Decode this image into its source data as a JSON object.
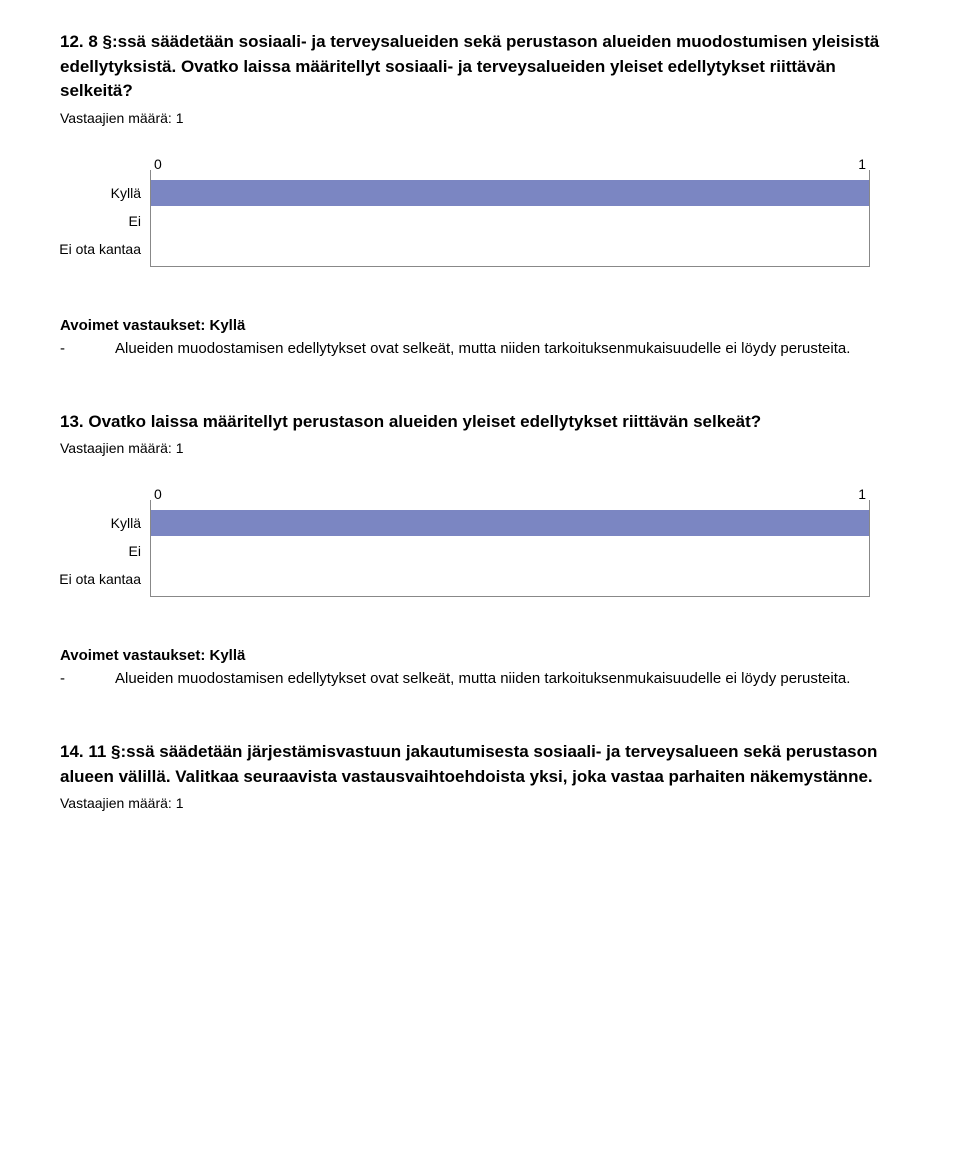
{
  "q12": {
    "title": "12. 8 §:ssä säädetään sosiaali- ja terveysalueiden sekä perustason alueiden muodostumisen yleisistä edellytyksistä. Ovatko laissa määritellyt sosiaali- ja terveysalueiden yleiset edellytykset riittävän selkeitä?",
    "respondents": "Vastaajien määrä: 1",
    "axis_min": "0",
    "axis_max": "1",
    "bars": [
      {
        "label": "Kyllä",
        "pct": 100,
        "color": "#7b86c2"
      },
      {
        "label": "Ei",
        "pct": 0,
        "color": "#7b86c2"
      },
      {
        "label": "Ei ota kantaa",
        "pct": 0,
        "color": "#7b86c2"
      }
    ],
    "answers_heading": "Avoimet vastaukset: Kyllä",
    "answers": [
      "Alueiden muodostamisen edellytykset ovat selkeät, mutta niiden tarkoituksenmukaisuudelle ei löydy perusteita."
    ]
  },
  "q13": {
    "title": "13. Ovatko laissa määritellyt perustason alueiden yleiset edellytykset riittävän selkeät?",
    "respondents": "Vastaajien määrä: 1",
    "axis_min": "0",
    "axis_max": "1",
    "bars": [
      {
        "label": "Kyllä",
        "pct": 100,
        "color": "#7b86c2"
      },
      {
        "label": "Ei",
        "pct": 0,
        "color": "#7b86c2"
      },
      {
        "label": "Ei ota kantaa",
        "pct": 0,
        "color": "#7b86c2"
      }
    ],
    "answers_heading": "Avoimet vastaukset: Kyllä",
    "answers": [
      "Alueiden muodostamisen edellytykset ovat selkeät, mutta niiden tarkoituksenmukaisuudelle ei löydy perusteita."
    ]
  },
  "q14": {
    "title": "14. 11 §:ssä säädetään järjestämisvastuun jakautumisesta sosiaali- ja terveysalueen sekä perustason alueen välillä. Valitkaa seuraavista vastausvaihtoehdoista yksi, joka vastaa parhaiten näkemystänne.",
    "respondents": "Vastaajien määrä: 1"
  },
  "chart_style": {
    "border_color": "#888888",
    "background": "#ffffff"
  }
}
